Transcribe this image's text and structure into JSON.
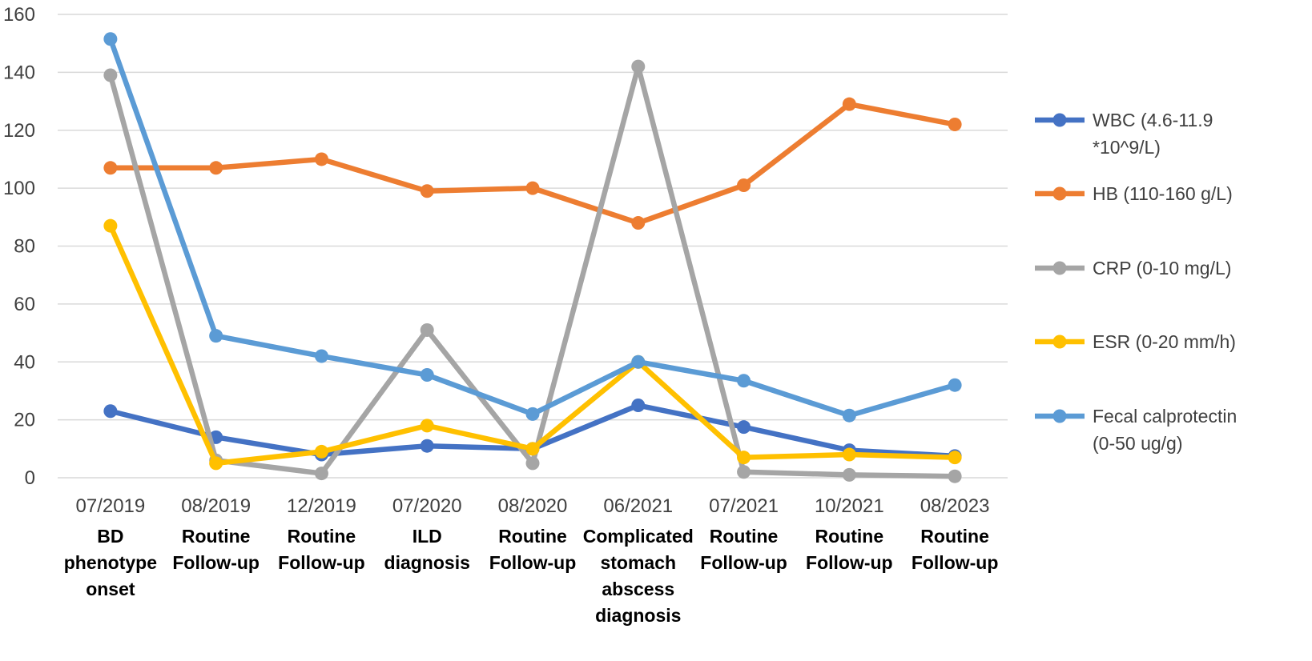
{
  "chart_data": {
    "type": "line",
    "title": "",
    "xlabel": "",
    "ylabel": "",
    "ylim": [
      0,
      160
    ],
    "yticks": [
      0,
      20,
      40,
      60,
      80,
      100,
      120,
      140,
      160
    ],
    "grid": true,
    "legend_position": "right",
    "categories": [
      {
        "date": "07/2019",
        "event": [
          "BD",
          "phenotype",
          "onset"
        ]
      },
      {
        "date": "08/2019",
        "event": [
          "Routine",
          "Follow-up"
        ]
      },
      {
        "date": "12/2019",
        "event": [
          "Routine",
          "Follow-up"
        ]
      },
      {
        "date": "07/2020",
        "event": [
          "ILD",
          "diagnosis"
        ]
      },
      {
        "date": "08/2020",
        "event": [
          "Routine",
          "Follow-up"
        ]
      },
      {
        "date": "06/2021",
        "event": [
          "Complicated",
          "stomach",
          "abscess",
          "diagnosis"
        ]
      },
      {
        "date": "07/2021",
        "event": [
          "Routine",
          "Follow-up"
        ]
      },
      {
        "date": "10/2021",
        "event": [
          "Routine",
          "Follow-up"
        ]
      },
      {
        "date": "08/2023",
        "event": [
          "Routine",
          "Follow-up"
        ]
      }
    ],
    "series": [
      {
        "name": "WBC (4.6-11.9 *10^9/L)",
        "legend_lines": [
          "WBC (4.6-11.9",
          "*10^9/L)"
        ],
        "color": "#4472c4",
        "values": [
          23,
          14,
          8,
          11,
          10,
          25,
          17.5,
          9.5,
          7.5
        ]
      },
      {
        "name": "HB (110-160 g/L)",
        "legend_lines": [
          "HB (110-160 g/L)"
        ],
        "color": "#ed7d31",
        "values": [
          107,
          107,
          110,
          99,
          100,
          88,
          101,
          129,
          122
        ]
      },
      {
        "name": "CRP (0-10 mg/L)",
        "legend_lines": [
          "CRP (0-10 mg/L)"
        ],
        "color": "#a5a5a5",
        "values": [
          139,
          6,
          1.5,
          51,
          5,
          142,
          2,
          1,
          0.5
        ]
      },
      {
        "name": "ESR (0-20 mm/h)",
        "legend_lines": [
          "ESR (0-20 mm/h)"
        ],
        "color": "#ffc000",
        "values": [
          87,
          5,
          9,
          18,
          10,
          40,
          7,
          8,
          7
        ]
      },
      {
        "name": "Fecal calprotectin (0-50 ug/g)",
        "legend_lines": [
          "Fecal calprotectin",
          "(0-50 ug/g)"
        ],
        "color": "#5b9bd5",
        "values": [
          151.5,
          49,
          42,
          35.5,
          22,
          40,
          33.5,
          21.5,
          32
        ]
      }
    ]
  }
}
